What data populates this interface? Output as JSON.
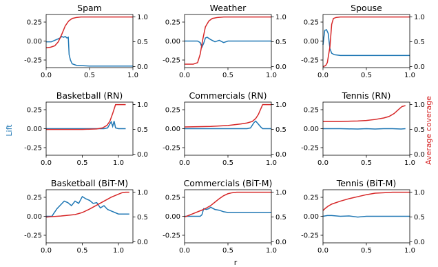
{
  "figure": {
    "left_axis_label": "Lift",
    "right_axis_label": "Average coverage",
    "x_axis_label": "r",
    "colors": {
      "lift": "#1f77b4",
      "coverage": "#d62728"
    }
  },
  "chart_data": [
    {
      "type": "line",
      "title": "Spam",
      "xlim": [
        0,
        1
      ],
      "ylim_left": [
        -0.35,
        0.35
      ],
      "ylim_right": [
        -0.02,
        1.05
      ],
      "xticks": [
        "0.0",
        "0.5",
        "1.0"
      ],
      "xtick_values": [
        0,
        0.5,
        1.0
      ],
      "yticks_left": [
        "0.25",
        "0.00",
        "-0.25"
      ],
      "ytick_values_left": [
        0.25,
        0,
        -0.25
      ],
      "yticks_right": [
        "1.0",
        "0.5",
        "0.0"
      ],
      "ytick_values_right": [
        1.0,
        0.5,
        0
      ],
      "series": [
        {
          "axis": "left",
          "x": [
            0,
            0.06,
            0.12,
            0.16,
            0.18,
            0.2,
            0.22,
            0.24,
            0.255,
            0.265,
            0.28,
            0.3,
            0.35,
            0.5,
            0.7,
            0.9,
            1.0
          ],
          "y": [
            -0.01,
            -0.01,
            0.02,
            0.04,
            0.06,
            0.05,
            0.06,
            0.04,
            0.05,
            -0.18,
            -0.25,
            -0.3,
            -0.32,
            -0.33,
            -0.33,
            -0.33,
            -0.33
          ]
        },
        {
          "axis": "right",
          "x": [
            0,
            0.05,
            0.1,
            0.14,
            0.18,
            0.22,
            0.26,
            0.3,
            0.35,
            0.4,
            0.5,
            0.6,
            0.8,
            1.0
          ],
          "y": [
            0.38,
            0.39,
            0.42,
            0.5,
            0.65,
            0.82,
            0.92,
            0.97,
            0.99,
            1.0,
            1.0,
            1.0,
            1.0,
            1.0
          ]
        }
      ]
    },
    {
      "type": "line",
      "title": "Weather",
      "xlim": [
        0,
        1
      ],
      "ylim_left": [
        -0.35,
        0.35
      ],
      "ylim_right": [
        -0.02,
        1.05
      ],
      "xticks": [
        "0.0",
        "0.5",
        "1.0"
      ],
      "xtick_values": [
        0,
        0.5,
        1.0
      ],
      "yticks_left": [
        "0.25",
        "0.00",
        "-0.25"
      ],
      "ytick_values_left": [
        0.25,
        0,
        -0.25
      ],
      "yticks_right": [
        "1.0",
        "0.5",
        "0.0"
      ],
      "ytick_values_right": [
        1.0,
        0.5,
        0
      ],
      "series": [
        {
          "axis": "left",
          "x": [
            0,
            0.1,
            0.15,
            0.18,
            0.2,
            0.22,
            0.24,
            0.26,
            0.3,
            0.35,
            0.4,
            0.45,
            0.5,
            0.6,
            0.8,
            1.0
          ],
          "y": [
            0,
            0,
            0,
            -0.02,
            -0.08,
            -0.03,
            0.04,
            0.05,
            0.02,
            -0.01,
            0.01,
            -0.02,
            0,
            0,
            0,
            0
          ]
        },
        {
          "axis": "right",
          "x": [
            0,
            0.1,
            0.15,
            0.18,
            0.21,
            0.24,
            0.28,
            0.32,
            0.38,
            0.45,
            0.55,
            0.7,
            1.0
          ],
          "y": [
            0.05,
            0.05,
            0.08,
            0.25,
            0.55,
            0.8,
            0.92,
            0.97,
            0.99,
            1.0,
            1.0,
            1.0,
            1.0
          ]
        }
      ]
    },
    {
      "type": "line",
      "title": "Spouse",
      "xlim": [
        0,
        1
      ],
      "ylim_left": [
        -0.35,
        0.35
      ],
      "ylim_right": [
        -0.02,
        1.05
      ],
      "xticks": [
        "0.0",
        "0.5",
        "1.0"
      ],
      "xtick_values": [
        0,
        0.5,
        1.0
      ],
      "yticks_left": [
        "0.25",
        "0.00",
        "-0.25"
      ],
      "ytick_values_left": [
        0.25,
        0,
        -0.25
      ],
      "yticks_right": [
        "1.0",
        "0.5",
        "0.0"
      ],
      "ytick_values_right": [
        1.0,
        0.5,
        0
      ],
      "series": [
        {
          "axis": "left",
          "x": [
            0,
            0.02,
            0.04,
            0.06,
            0.08,
            0.1,
            0.13,
            0.2,
            0.3,
            0.5,
            0.7,
            1.0
          ],
          "y": [
            -0.05,
            0.14,
            0.15,
            0.1,
            -0.1,
            -0.16,
            -0.18,
            -0.19,
            -0.19,
            -0.19,
            -0.19,
            -0.19
          ]
        },
        {
          "axis": "right",
          "x": [
            0,
            0.03,
            0.05,
            0.08,
            0.1,
            0.12,
            0.15,
            0.2,
            0.3,
            0.5,
            1.0
          ],
          "y": [
            0.0,
            0.02,
            0.08,
            0.4,
            0.85,
            0.97,
            0.99,
            1.0,
            1.0,
            1.0,
            1.0
          ]
        }
      ]
    },
    {
      "type": "line",
      "title": "Basketball (RN)",
      "xlim": [
        0,
        1.2
      ],
      "ylim_left": [
        -0.35,
        0.35
      ],
      "ylim_right": [
        -0.02,
        1.05
      ],
      "xticks": [
        "0.0",
        "0.5",
        "1.0"
      ],
      "xtick_values": [
        0,
        0.5,
        1.0
      ],
      "yticks_left": [
        "0.25",
        "0.00",
        "-0.25"
      ],
      "ytick_values_left": [
        0.25,
        0,
        -0.25
      ],
      "yticks_right": [
        "1.0",
        "0.5",
        "0.0"
      ],
      "ytick_values_right": [
        1.0,
        0.5,
        0
      ],
      "series": [
        {
          "axis": "left",
          "x": [
            0,
            0.5,
            0.8,
            0.85,
            0.88,
            0.9,
            0.92,
            0.94,
            0.96,
            1.0,
            1.1
          ],
          "y": [
            0,
            0,
            0,
            0.01,
            0.06,
            0.09,
            0.03,
            0.1,
            0.01,
            0,
            0
          ]
        },
        {
          "axis": "right",
          "x": [
            0,
            0.5,
            0.7,
            0.78,
            0.84,
            0.88,
            0.92,
            0.96,
            1.0,
            1.1
          ],
          "y": [
            0.5,
            0.5,
            0.51,
            0.53,
            0.58,
            0.66,
            0.82,
            1.0,
            1.0,
            1.0
          ]
        }
      ]
    },
    {
      "type": "line",
      "title": "Commercials (RN)",
      "xlim": [
        0,
        1
      ],
      "ylim_left": [
        -0.35,
        0.35
      ],
      "ylim_right": [
        -0.02,
        1.05
      ],
      "xticks": [
        "0.0",
        "0.5",
        "1.0"
      ],
      "xtick_values": [
        0,
        0.5,
        1.0
      ],
      "yticks_left": [
        "0.25",
        "0.00",
        "-0.25"
      ],
      "ytick_values_left": [
        0.25,
        0,
        -0.25
      ],
      "yticks_right": [
        "1.0",
        "0.5",
        "0.0"
      ],
      "ytick_values_right": [
        1.0,
        0.5,
        0
      ],
      "series": [
        {
          "axis": "left",
          "x": [
            0,
            0.3,
            0.6,
            0.72,
            0.76,
            0.8,
            0.82,
            0.85,
            0.88,
            0.9,
            0.95,
            1.0
          ],
          "y": [
            0,
            0,
            0,
            0,
            0.01,
            0.08,
            0.1,
            0.06,
            0.02,
            0,
            0,
            0
          ]
        },
        {
          "axis": "right",
          "x": [
            0,
            0.3,
            0.5,
            0.65,
            0.72,
            0.78,
            0.82,
            0.85,
            0.88,
            0.9,
            0.95,
            1.0
          ],
          "y": [
            0.55,
            0.56,
            0.58,
            0.61,
            0.63,
            0.66,
            0.72,
            0.8,
            0.92,
            1.0,
            1.0,
            1.0
          ]
        }
      ]
    },
    {
      "type": "line",
      "title": "Tennis (RN)",
      "xlim": [
        0,
        1
      ],
      "ylim_left": [
        -0.35,
        0.35
      ],
      "ylim_right": [
        -0.02,
        1.05
      ],
      "xticks": [
        "0.0",
        "0.5",
        "1.0"
      ],
      "xtick_values": [
        0,
        0.5,
        1.0
      ],
      "yticks_left": [
        "0.25",
        "0.00",
        "-0.25"
      ],
      "ytick_values_left": [
        0.25,
        0,
        -0.25
      ],
      "yticks_right": [
        "1.0",
        "0.5",
        "0.0"
      ],
      "ytick_values_right": [
        1.0,
        0.5,
        0
      ],
      "series": [
        {
          "axis": "left",
          "x": [
            0,
            0.2,
            0.4,
            0.5,
            0.6,
            0.7,
            0.8,
            0.9,
            0.95
          ],
          "y": [
            0,
            0,
            -0.005,
            0,
            -0.005,
            0,
            0,
            -0.005,
            0
          ]
        },
        {
          "axis": "right",
          "x": [
            0,
            0.2,
            0.4,
            0.5,
            0.6,
            0.7,
            0.76,
            0.82,
            0.87,
            0.91,
            0.95
          ],
          "y": [
            0.66,
            0.66,
            0.67,
            0.68,
            0.7,
            0.73,
            0.76,
            0.82,
            0.9,
            0.96,
            0.98
          ]
        }
      ]
    },
    {
      "type": "line",
      "title": "Basketball (BiT-M)",
      "xlim": [
        0,
        1.2
      ],
      "ylim_left": [
        -0.35,
        0.35
      ],
      "ylim_right": [
        -0.02,
        1.05
      ],
      "xticks": [
        "0.0",
        "0.5",
        "1.0"
      ],
      "xtick_values": [
        0,
        0.5,
        1.0
      ],
      "yticks_left": [
        "0.25",
        "0.00",
        "-0.25"
      ],
      "ytick_values_left": [
        0.25,
        0,
        -0.25
      ],
      "yticks_right": [
        "1.0",
        "0.5",
        "0.0"
      ],
      "ytick_values_right": [
        1.0,
        0.5,
        0
      ],
      "series": [
        {
          "axis": "left",
          "x": [
            0,
            0.08,
            0.1,
            0.15,
            0.2,
            0.25,
            0.3,
            0.35,
            0.4,
            0.45,
            0.5,
            0.55,
            0.6,
            0.65,
            0.7,
            0.75,
            0.8,
            0.85,
            0.9,
            0.95,
            1.0,
            1.1,
            1.15
          ],
          "y": [
            0,
            0,
            0.03,
            0.1,
            0.15,
            0.2,
            0.18,
            0.14,
            0.2,
            0.17,
            0.26,
            0.23,
            0.21,
            0.17,
            0.18,
            0.11,
            0.14,
            0.09,
            0.07,
            0.05,
            0.03,
            0.03,
            0.03
          ]
        },
        {
          "axis": "right",
          "x": [
            0,
            0.2,
            0.4,
            0.5,
            0.6,
            0.7,
            0.8,
            0.9,
            1.0,
            1.05,
            1.1,
            1.15
          ],
          "y": [
            0.5,
            0.52,
            0.55,
            0.59,
            0.66,
            0.74,
            0.82,
            0.9,
            0.96,
            0.99,
            1.0,
            1.0
          ]
        }
      ]
    },
    {
      "type": "line",
      "title": "Commercials (BiT-M)",
      "xlim": [
        0,
        1
      ],
      "ylim_left": [
        -0.35,
        0.35
      ],
      "ylim_right": [
        -0.02,
        1.05
      ],
      "xticks": [
        "0.0",
        "0.5",
        "1.0"
      ],
      "xtick_values": [
        0,
        0.5,
        1.0
      ],
      "yticks_left": [
        "0.25",
        "0.00",
        "-0.25"
      ],
      "ytick_values_left": [
        0.25,
        0,
        -0.25
      ],
      "yticks_right": [
        "1.0",
        "0.5",
        "0.0"
      ],
      "ytick_values_right": [
        1.0,
        0.5,
        0
      ],
      "series": [
        {
          "axis": "left",
          "x": [
            0,
            0.1,
            0.18,
            0.2,
            0.22,
            0.25,
            0.28,
            0.3,
            0.35,
            0.4,
            0.45,
            0.5,
            0.6,
            0.8,
            1.0
          ],
          "y": [
            0,
            0,
            0,
            0.02,
            0.1,
            0.09,
            0.1,
            0.12,
            0.09,
            0.08,
            0.06,
            0.05,
            0.05,
            0.05,
            0.05
          ]
        },
        {
          "axis": "right",
          "x": [
            0,
            0.1,
            0.2,
            0.25,
            0.3,
            0.35,
            0.4,
            0.45,
            0.5,
            0.55,
            0.6,
            0.7,
            0.8,
            1.0
          ],
          "y": [
            0.5,
            0.57,
            0.64,
            0.68,
            0.73,
            0.8,
            0.87,
            0.93,
            0.97,
            0.99,
            1.0,
            1.0,
            1.0,
            1.0
          ]
        }
      ]
    },
    {
      "type": "line",
      "title": "Tennis (BiT-M)",
      "xlim": [
        0,
        1
      ],
      "ylim_left": [
        -0.35,
        0.35
      ],
      "ylim_right": [
        -0.02,
        1.05
      ],
      "xticks": [
        "0.0",
        "0.5",
        "1.0"
      ],
      "xtick_values": [
        0,
        0.5,
        1.0
      ],
      "yticks_left": [
        "0.25",
        "0.00",
        "-0.25"
      ],
      "ytick_values_left": [
        0.25,
        0,
        -0.25
      ],
      "yticks_right": [
        "1.0",
        "0.5",
        "0.0"
      ],
      "ytick_values_right": [
        1.0,
        0.5,
        0
      ],
      "series": [
        {
          "axis": "left",
          "x": [
            0,
            0.05,
            0.1,
            0.2,
            0.3,
            0.4,
            0.5,
            0.6,
            0.8,
            1.0
          ],
          "y": [
            0,
            0.01,
            0.01,
            0,
            0.005,
            -0.01,
            0,
            0,
            0,
            0
          ]
        },
        {
          "axis": "right",
          "x": [
            0,
            0.03,
            0.06,
            0.1,
            0.2,
            0.3,
            0.4,
            0.5,
            0.6,
            0.7,
            0.8,
            0.9,
            1.0
          ],
          "y": [
            0.63,
            0.68,
            0.72,
            0.76,
            0.82,
            0.87,
            0.91,
            0.95,
            0.98,
            0.99,
            1.0,
            1.0,
            1.0
          ]
        }
      ]
    }
  ]
}
